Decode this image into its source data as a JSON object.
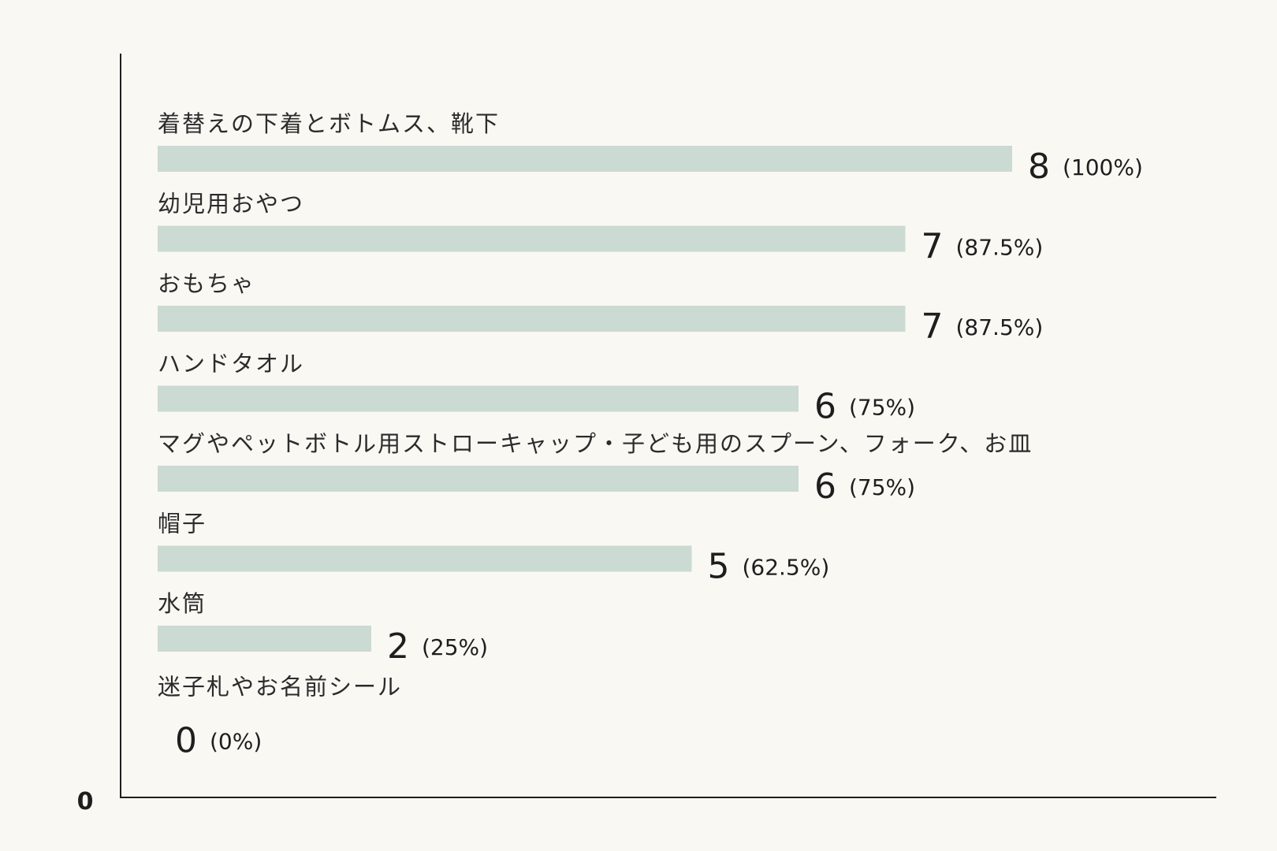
{
  "chart_data": {
    "type": "bar",
    "orientation": "horizontal",
    "categories": [
      "着替えの下着とボトムス、靴下",
      "幼児用おやつ",
      "おもちゃ",
      "ハンドタオル",
      "マグやペットボトル用ストローキャップ・子ども用のスプーン、フォーク、お皿",
      "帽子",
      "水筒",
      "迷子札やお名前シール"
    ],
    "values": [
      8,
      7,
      7,
      6,
      6,
      5,
      2,
      0
    ],
    "percent_labels": [
      "(100%)",
      "(87.5%)",
      "(87.5%)",
      "(75%)",
      "(75%)",
      "(62.5%)",
      "(25%)",
      "(0%)"
    ],
    "origin_label": "0",
    "xlim": [
      0,
      8
    ],
    "bar_color": "#cbdad2",
    "grid": false,
    "legend": "none"
  }
}
